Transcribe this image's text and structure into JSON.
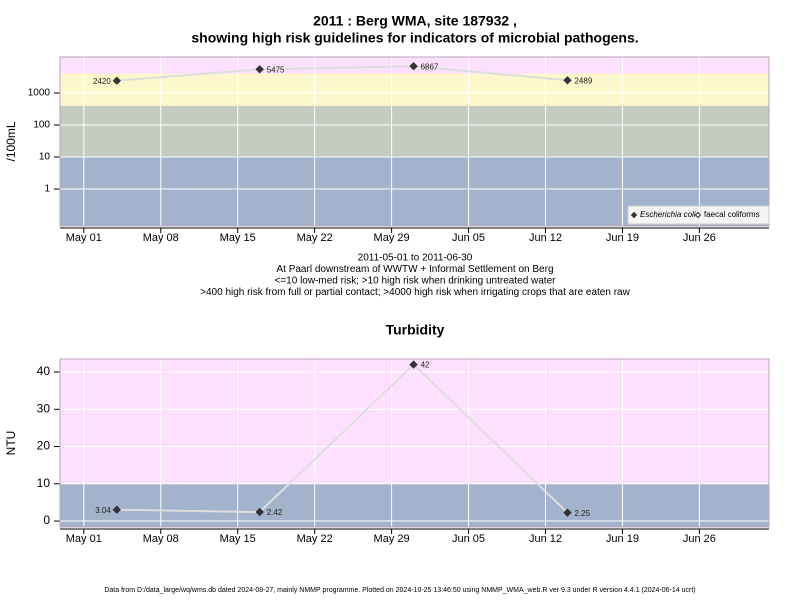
{
  "chart_data": [
    {
      "type": "line",
      "title": [
        "2011 : Berg WMA, site 187932 ,",
        "showing high risk guidelines for indicators of microbial pathogens."
      ],
      "y_label": "/100mL",
      "log_y": true,
      "x": [
        "2011-05-04",
        "2011-05-17",
        "2011-05-31",
        "2011-06-14"
      ],
      "series": [
        {
          "name": "Escherichia coli",
          "color": "#333333",
          "line_color": "#dddddd",
          "marker": "filled",
          "values": [
            2420,
            5475,
            6867,
            2489
          ]
        },
        {
          "name": "faecal coliforms",
          "color": "#333333",
          "marker": "open",
          "values": [
            null,
            null,
            null,
            null
          ]
        }
      ],
      "xlim": [
        "2011-04-28T20:00",
        "2011-07-02T08:00"
      ],
      "xticks": [
        {
          "value": "2011-05-01",
          "label": "May 01"
        },
        {
          "value": "2011-05-08",
          "label": "May 08"
        },
        {
          "value": "2011-05-15",
          "label": "May 15"
        },
        {
          "value": "2011-05-22",
          "label": "May 22"
        },
        {
          "value": "2011-05-29",
          "label": "May 29"
        },
        {
          "value": "2011-06-05",
          "label": "Jun 05"
        },
        {
          "value": "2011-06-12",
          "label": "Jun 12"
        },
        {
          "value": "2011-06-19",
          "label": "Jun 19"
        },
        {
          "value": "2011-06-26",
          "label": "Jun 26"
        }
      ],
      "ylim": [
        0.07,
        13300
      ],
      "yticks": [
        1,
        10,
        100,
        1000
      ],
      "band_limits": [
        10,
        400,
        4000
      ],
      "band_colors": [
        "#a3b3cb",
        "#c4cbbf",
        "#fdf8cb",
        "#fde0fd"
      ],
      "legend": "bottom-right",
      "grid": true,
      "notes": [
        "2011-05-01 to 2011-06-30",
        "At Paarl downstream of WWTW + Informal Settlement on Berg",
        "<=10 low-med risk; >10 high risk when drinking untreated water",
        ">400 high risk from full or partial contact; >4000 high risk when irrigating crops that are eaten raw"
      ]
    },
    {
      "type": "line",
      "title": [
        "Turbidity"
      ],
      "y_label": "NTU",
      "log_y": false,
      "x": [
        "2011-05-04",
        "2011-05-17",
        "2011-05-31",
        "2011-06-14"
      ],
      "series": [
        {
          "name": "Turbidity",
          "color": "#333333",
          "line_color": "#dddddd",
          "marker": "filled",
          "values": [
            3.04,
            2.42,
            42,
            2.25
          ]
        }
      ],
      "xlim": [
        "2011-04-28T20:00",
        "2011-07-02T08:00"
      ],
      "xticks": [
        {
          "value": "2011-05-01",
          "label": "May 01"
        },
        {
          "value": "2011-05-08",
          "label": "May 08"
        },
        {
          "value": "2011-05-15",
          "label": "May 15"
        },
        {
          "value": "2011-05-22",
          "label": "May 22"
        },
        {
          "value": "2011-05-29",
          "label": "May 29"
        },
        {
          "value": "2011-06-05",
          "label": "Jun 05"
        },
        {
          "value": "2011-06-12",
          "label": "Jun 12"
        },
        {
          "value": "2011-06-19",
          "label": "Jun 19"
        },
        {
          "value": "2011-06-26",
          "label": "Jun 26"
        }
      ],
      "ylim": [
        -1.6,
        43.5
      ],
      "yticks": [
        0,
        10,
        20,
        30,
        40
      ],
      "band_limits": [
        10
      ],
      "band_colors": [
        "#a3b3cb",
        "#fde0fd"
      ],
      "grid": true
    }
  ],
  "footer": "Data from D:/data_large/wq/wms.db dated 2024-08-27, mainly NMMP programme. Plotted on 2024-10-25 13:46:50 using NMMP_WMA_web.R ver 9.3 under R version 4.4.1 (2024-06-14 ucrt)"
}
